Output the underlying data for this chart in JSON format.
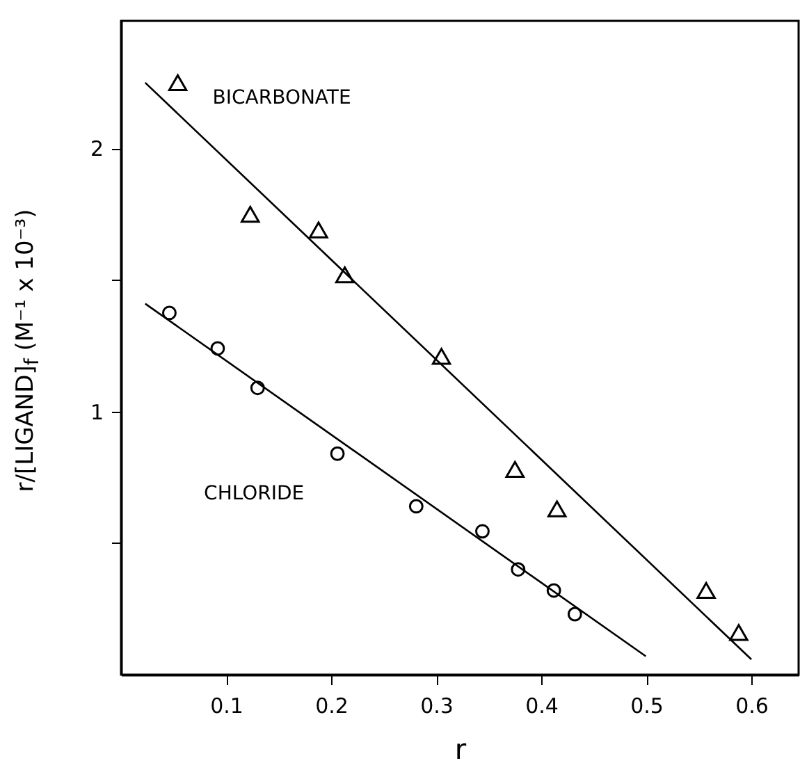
{
  "chart_data": {
    "type": "scatter",
    "xlabel": "r",
    "ylabel": "r/[LIGAND]$_{f}$ (M⁻¹ x 10⁻³)",
    "xlim": [
      0,
      0.645
    ],
    "ylim": [
      0,
      2.485
    ],
    "xticks": [
      0.1,
      0.2,
      0.3,
      0.4,
      0.5,
      0.6
    ],
    "yticks": [
      {
        "value": 0.5,
        "label": null
      },
      1,
      {
        "value": 1.5,
        "label": null
      },
      2
    ],
    "grid": false,
    "legend": false,
    "series": [
      {
        "name": "BICARBONATE",
        "marker": "triangle",
        "color": "#000000",
        "x": [
          0.054,
          0.123,
          0.188,
          0.213,
          0.305,
          0.375,
          0.415,
          0.557,
          0.588
        ],
        "values": [
          2.25,
          1.75,
          1.69,
          1.52,
          1.21,
          0.78,
          0.63,
          0.32,
          0.16
        ]
      },
      {
        "name": "CHLORIDE",
        "marker": "circle",
        "color": "#000000",
        "x": [
          0.046,
          0.092,
          0.13,
          0.206,
          0.281,
          0.344,
          0.378,
          0.412,
          0.432
        ],
        "values": [
          1.375,
          1.24,
          1.09,
          0.84,
          0.64,
          0.545,
          0.4,
          0.32,
          0.23
        ]
      },
      {
        "type": "line",
        "marker": "none",
        "line_style": "solid",
        "color": "#000000",
        "x": [
          0.023,
          0.6
        ],
        "values": [
          2.25,
          0.058
        ]
      },
      {
        "type": "line",
        "marker": "none",
        "line_style": "solid",
        "color": "#000000",
        "x": [
          0.023,
          0.4995
        ],
        "values": [
          1.41,
          0.07
        ]
      }
    ]
  }
}
